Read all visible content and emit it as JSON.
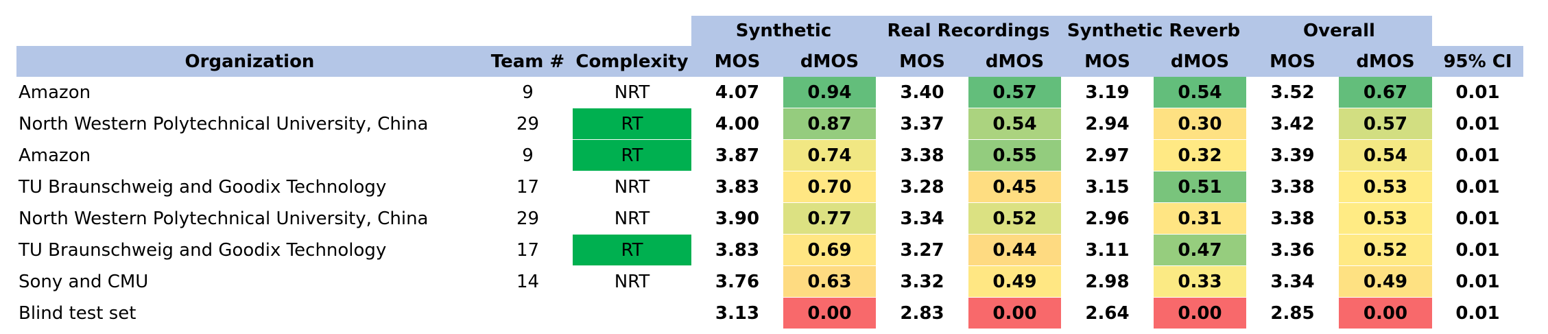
{
  "colors": {
    "header_bg": "#b4c6e7",
    "rt_green": "#00b050",
    "scale_low": "#f8696b",
    "scale_mid": "#ffeb84",
    "scale_high": "#63be7b"
  },
  "table": {
    "group_headers": [
      "Synthetic",
      "Real Recordings",
      "Synthetic Reverb",
      "Overall"
    ],
    "columns": [
      "Organization",
      "Team #",
      "Complexity",
      "MOS",
      "dMOS",
      "MOS",
      "dMOS",
      "MOS",
      "dMOS",
      "MOS",
      "dMOS",
      "95% CI"
    ],
    "rows": [
      {
        "org": "Amazon",
        "team": "9",
        "complexity": "NRT",
        "syn_mos": "4.07",
        "syn_dmos": "0.94",
        "real_mos": "3.40",
        "real_dmos": "0.57",
        "rev_mos": "3.19",
        "rev_dmos": "0.54",
        "ov_mos": "3.52",
        "ov_dmos": "0.67",
        "ci": "0.01"
      },
      {
        "org": "North Western Polytechnical University, China",
        "team": "29",
        "complexity": "RT",
        "syn_mos": "4.00",
        "syn_dmos": "0.87",
        "real_mos": "3.37",
        "real_dmos": "0.54",
        "rev_mos": "2.94",
        "rev_dmos": "0.30",
        "ov_mos": "3.42",
        "ov_dmos": "0.57",
        "ci": "0.01"
      },
      {
        "org": "Amazon",
        "team": "9",
        "complexity": "RT",
        "syn_mos": "3.87",
        "syn_dmos": "0.74",
        "real_mos": "3.38",
        "real_dmos": "0.55",
        "rev_mos": "2.97",
        "rev_dmos": "0.32",
        "ov_mos": "3.39",
        "ov_dmos": "0.54",
        "ci": "0.01"
      },
      {
        "org": "TU Braunschweig and Goodix Technology",
        "team": "17",
        "complexity": "NRT",
        "syn_mos": "3.83",
        "syn_dmos": "0.70",
        "real_mos": "3.28",
        "real_dmos": "0.45",
        "rev_mos": "3.15",
        "rev_dmos": "0.51",
        "ov_mos": "3.38",
        "ov_dmos": "0.53",
        "ci": "0.01"
      },
      {
        "org": "North Western Polytechnical University, China",
        "team": "29",
        "complexity": "NRT",
        "syn_mos": "3.90",
        "syn_dmos": "0.77",
        "real_mos": "3.34",
        "real_dmos": "0.52",
        "rev_mos": "2.96",
        "rev_dmos": "0.31",
        "ov_mos": "3.38",
        "ov_dmos": "0.53",
        "ci": "0.01"
      },
      {
        "org": "TU Braunschweig and Goodix Technology",
        "team": "17",
        "complexity": "RT",
        "syn_mos": "3.83",
        "syn_dmos": "0.69",
        "real_mos": "3.27",
        "real_dmos": "0.44",
        "rev_mos": "3.11",
        "rev_dmos": "0.47",
        "ov_mos": "3.36",
        "ov_dmos": "0.52",
        "ci": "0.01"
      },
      {
        "org": "Sony and CMU",
        "team": "14",
        "complexity": "NRT",
        "syn_mos": "3.76",
        "syn_dmos": "0.63",
        "real_mos": "3.32",
        "real_dmos": "0.49",
        "rev_mos": "2.98",
        "rev_dmos": "0.33",
        "ov_mos": "3.34",
        "ov_dmos": "0.49",
        "ci": "0.01"
      },
      {
        "org": "Blind test set",
        "team": "",
        "complexity": "",
        "syn_mos": "3.13",
        "syn_dmos": "0.00",
        "real_mos": "2.83",
        "real_dmos": "0.00",
        "rev_mos": "2.64",
        "rev_dmos": "0.00",
        "ov_mos": "2.85",
        "ov_dmos": "0.00",
        "ci": "0.01"
      }
    ]
  }
}
